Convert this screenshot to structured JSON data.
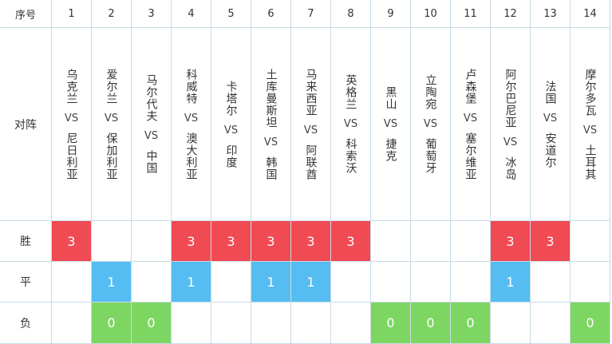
{
  "header": {
    "index_label": "序号",
    "matchup_label": "对阵"
  },
  "row_labels": {
    "win": "胜",
    "draw": "平",
    "loss": "负"
  },
  "vs_text": "VS",
  "colors": {
    "win": "#f04a53",
    "draw": "#55bdf2",
    "loss": "#7ed662",
    "border": "#c9dbe6"
  },
  "matches": [
    {
      "no": "1",
      "home": "乌克兰",
      "away": "尼日利亚",
      "win": "3",
      "draw": "",
      "loss": ""
    },
    {
      "no": "2",
      "home": "爱尔兰",
      "away": "保加利亚",
      "win": "",
      "draw": "1",
      "loss": "0"
    },
    {
      "no": "3",
      "home": "马尔代夫",
      "away": "中国",
      "win": "",
      "draw": "",
      "loss": "0"
    },
    {
      "no": "4",
      "home": "科威特",
      "away": "澳大利亚",
      "win": "3",
      "draw": "1",
      "loss": ""
    },
    {
      "no": "5",
      "home": "卡塔尔",
      "away": "印度",
      "win": "3",
      "draw": "",
      "loss": ""
    },
    {
      "no": "6",
      "home": "土库曼斯坦",
      "away": "韩国",
      "win": "3",
      "draw": "1",
      "loss": ""
    },
    {
      "no": "7",
      "home": "马来西亚",
      "away": "阿联酋",
      "win": "3",
      "draw": "1",
      "loss": ""
    },
    {
      "no": "8",
      "home": "英格兰",
      "away": "科索沃",
      "win": "3",
      "draw": "",
      "loss": ""
    },
    {
      "no": "9",
      "home": "黑山",
      "away": "捷克",
      "win": "",
      "draw": "",
      "loss": "0"
    },
    {
      "no": "10",
      "home": "立陶宛",
      "away": "葡萄牙",
      "win": "",
      "draw": "",
      "loss": "0"
    },
    {
      "no": "11",
      "home": "卢森堡",
      "away": "塞尔维亚",
      "win": "",
      "draw": "",
      "loss": "0"
    },
    {
      "no": "12",
      "home": "阿尔巴尼亚",
      "away": "冰岛",
      "win": "3",
      "draw": "1",
      "loss": ""
    },
    {
      "no": "13",
      "home": "法国",
      "away": "安道尔",
      "win": "3",
      "draw": "",
      "loss": ""
    },
    {
      "no": "14",
      "home": "摩尔多瓦",
      "away": "土耳其",
      "win": "",
      "draw": "",
      "loss": "0"
    }
  ]
}
